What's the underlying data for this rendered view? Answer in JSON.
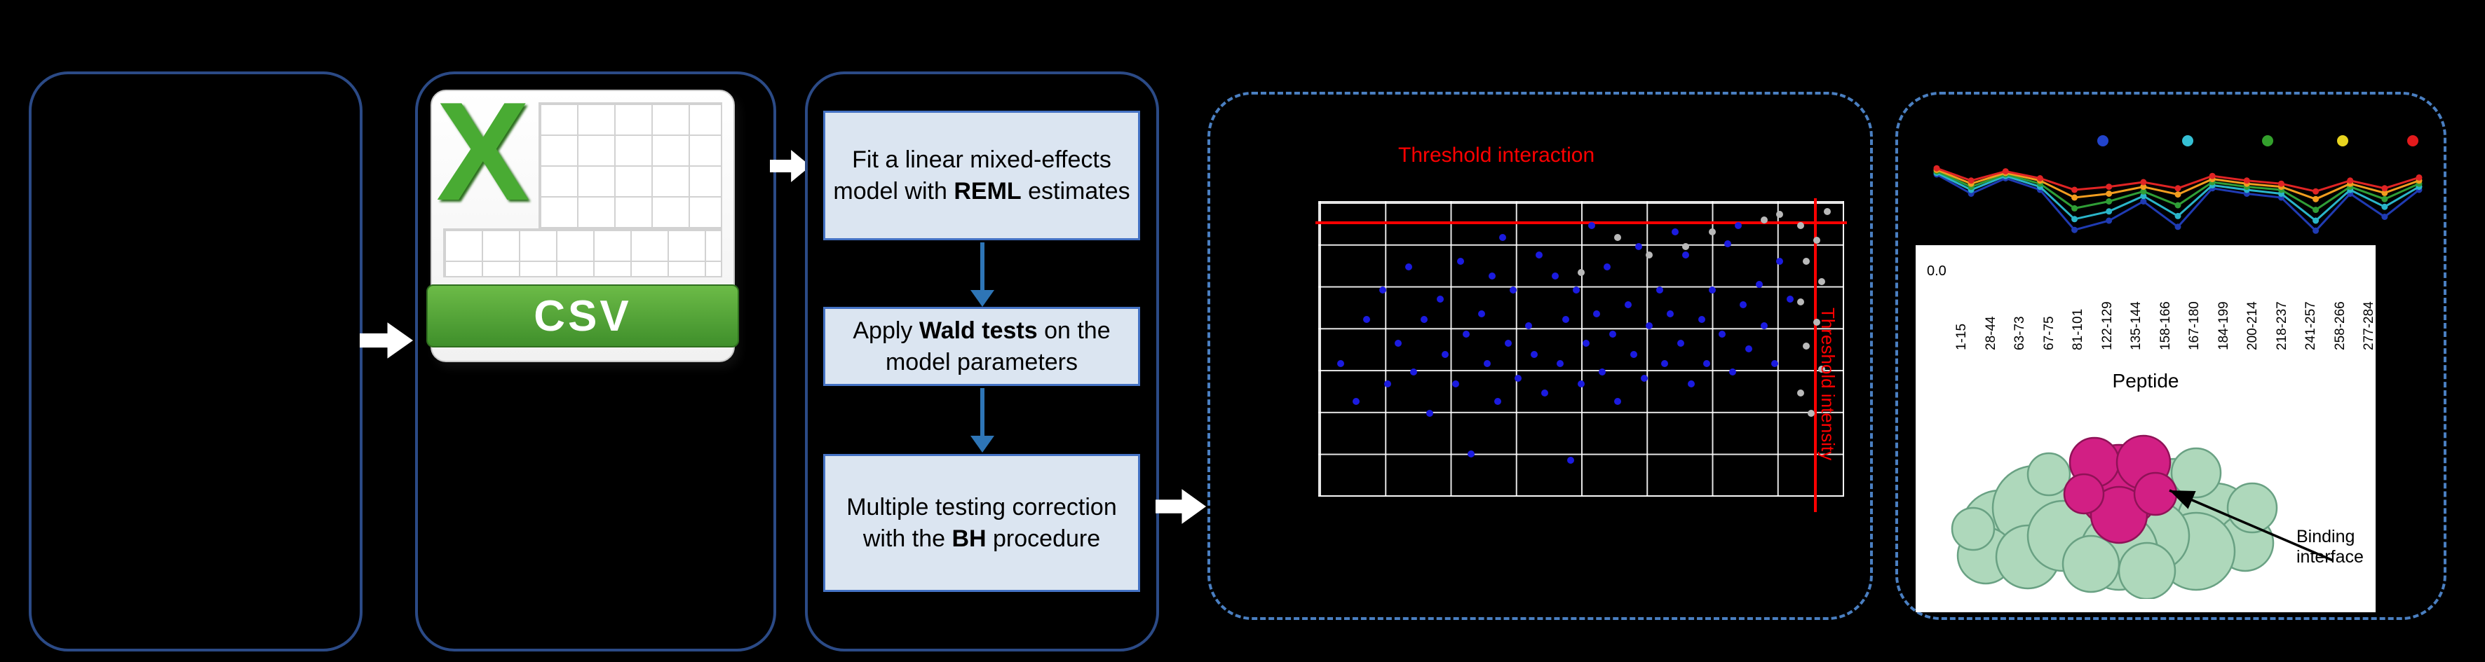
{
  "pipeline": {
    "steps": [
      {
        "before": "Fit a linear mixed-effects model with ",
        "bold": "REML",
        "after": " estimates"
      },
      {
        "before": "Apply ",
        "bold": "Wald tests",
        "after": " on the model parameters"
      },
      {
        "before": "Multiple testing correction\nwith the ",
        "bold": "BH",
        "after": " procedure"
      }
    ]
  },
  "csv_icon": {
    "letter": "X",
    "label": "CSV"
  },
  "protein": {
    "annotation": "Binding interface"
  },
  "chart_data": [
    {
      "type": "scatter",
      "annotations": {
        "top": "Threshold interaction",
        "right": "Threshold intensity"
      },
      "thresholds": {
        "horizontal_y_pct": 6.5,
        "vertical_x_pct": 94.5
      },
      "grid": true,
      "colors": {
        "grid": "#ffffff",
        "threshold": "#ff0000",
        "background": "#000000"
      },
      "series": [
        {
          "name": "blue",
          "color": "#1b1be0",
          "points": [
            [
              4,
              55
            ],
            [
              7,
              68
            ],
            [
              9,
              40
            ],
            [
              12,
              30
            ],
            [
              13,
              62
            ],
            [
              15,
              48
            ],
            [
              17,
              22
            ],
            [
              18,
              58
            ],
            [
              20,
              40
            ],
            [
              21,
              72
            ],
            [
              23,
              33
            ],
            [
              24,
              52
            ],
            [
              26,
              62
            ],
            [
              27,
              20
            ],
            [
              28,
              45
            ],
            [
              29,
              86
            ],
            [
              31,
              38
            ],
            [
              32,
              55
            ],
            [
              33,
              25
            ],
            [
              34,
              68
            ],
            [
              36,
              48
            ],
            [
              37,
              30
            ],
            [
              38,
              60
            ],
            [
              40,
              42
            ],
            [
              41,
              52
            ],
            [
              42,
              18
            ],
            [
              43,
              65
            ],
            [
              45,
              25
            ],
            [
              46,
              55
            ],
            [
              47,
              40
            ],
            [
              48,
              88
            ],
            [
              49,
              30
            ],
            [
              50,
              62
            ],
            [
              51,
              48
            ],
            [
              53,
              38
            ],
            [
              54,
              58
            ],
            [
              55,
              22
            ],
            [
              56,
              45
            ],
            [
              57,
              68
            ],
            [
              59,
              35
            ],
            [
              60,
              52
            ],
            [
              61,
              15
            ],
            [
              62,
              60
            ],
            [
              63,
              42
            ],
            [
              65,
              30
            ],
            [
              66,
              55
            ],
            [
              67,
              38
            ],
            [
              69,
              48
            ],
            [
              70,
              18
            ],
            [
              71,
              62
            ],
            [
              73,
              40
            ],
            [
              74,
              55
            ],
            [
              75,
              30
            ],
            [
              77,
              45
            ],
            [
              78,
              14
            ],
            [
              79,
              58
            ],
            [
              81,
              35
            ],
            [
              82,
              50
            ],
            [
              84,
              28
            ],
            [
              85,
              42
            ],
            [
              87,
              55
            ],
            [
              88,
              20
            ],
            [
              90,
              33
            ],
            [
              35,
              12
            ],
            [
              52,
              8
            ],
            [
              68,
              10
            ],
            [
              80,
              8
            ]
          ]
        },
        {
          "name": "gray",
          "color": "#b9b9b9",
          "points": [
            [
              92,
              8
            ],
            [
              95,
              13
            ],
            [
              93,
              20
            ],
            [
              96,
              27
            ],
            [
              92,
              34
            ],
            [
              95,
              41
            ],
            [
              93,
              49
            ],
            [
              96,
              57
            ],
            [
              92,
              65
            ],
            [
              94,
              72
            ],
            [
              57,
              12
            ],
            [
              63,
              18
            ],
            [
              70,
              15
            ],
            [
              75,
              10
            ],
            [
              50,
              24
            ],
            [
              88,
              4
            ],
            [
              97,
              3
            ],
            [
              85,
              6
            ]
          ]
        }
      ]
    },
    {
      "type": "line",
      "categories": [
        "1-15",
        "28-44",
        "63-73",
        "67-75",
        "81-101",
        "122-129",
        "135-144",
        "158-166",
        "167-180",
        "184-199",
        "200-214",
        "218-237",
        "241-257",
        "258-266",
        "277-284"
      ],
      "xlabel": "Peptide",
      "first_ytick": "0.0",
      "legend_dot_colors": [
        "#2244cc",
        "#35c0d4",
        "#33a02c",
        "#e8d41f",
        "#e31a1c"
      ],
      "legend_dot_x_pct": [
        35,
        52,
        68,
        83,
        97
      ],
      "series": [
        {
          "color": "#1f3bb3",
          "values": [
            20,
            45,
            25,
            40,
            92,
            80,
            55,
            88,
            38,
            45,
            50,
            93,
            45,
            75,
            40
          ]
        },
        {
          "color": "#2ab5c9",
          "values": [
            18,
            40,
            22,
            36,
            78,
            68,
            48,
            74,
            34,
            40,
            45,
            80,
            40,
            62,
            36
          ]
        },
        {
          "color": "#2f9e36",
          "values": [
            16,
            36,
            20,
            32,
            64,
            55,
            42,
            60,
            30,
            36,
            40,
            66,
            36,
            52,
            32
          ]
        },
        {
          "color": "#f29d1f",
          "values": [
            14,
            32,
            18,
            28,
            50,
            45,
            36,
            46,
            26,
            32,
            36,
            52,
            32,
            44,
            28
          ]
        },
        {
          "color": "#e02424",
          "values": [
            12,
            28,
            16,
            25,
            40,
            36,
            30,
            38,
            22,
            28,
            32,
            42,
            28,
            38,
            24
          ]
        }
      ]
    }
  ]
}
